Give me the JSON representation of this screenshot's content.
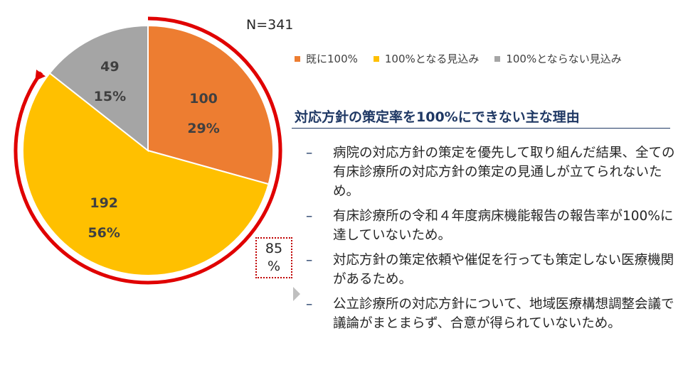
{
  "n_label": "N=341",
  "chart_data": {
    "type": "pie",
    "slices": [
      {
        "label": "既に100%",
        "count": "100",
        "percent_label": "29%",
        "value": 100,
        "color": "#ed7d31"
      },
      {
        "label": "100%となる見込み",
        "count": "192",
        "percent_label": "56%",
        "value": 192,
        "color": "#ffc000"
      },
      {
        "label": "100%とならない見込み",
        "count": "49",
        "percent_label": "15%",
        "value": 49,
        "color": "#a5a5a5"
      }
    ],
    "legend_placement": "top",
    "annotation": {
      "line1": "85",
      "line2": "%",
      "covers": [
        "既に100%",
        "100%となる見込み"
      ],
      "color": "#e00000"
    }
  },
  "legend": [
    {
      "label": "既に100%",
      "color": "#ed7d31"
    },
    {
      "label": "100%となる見込み",
      "color": "#ffc000"
    },
    {
      "label": "100%とならない見込み",
      "color": "#a5a5a5"
    }
  ],
  "reasons_title": "対応方針の策定率を100%にできない主な理由",
  "reasons": [
    {
      "dash": "–",
      "text": "病院の対応方針の策定を優先して取り組んだ結果、全ての有床診療所の対応方針の策定の見通しが立てられないため。"
    },
    {
      "dash": "–",
      "text": "有床診療所の令和４年度病床機能報告の報告率が100%に達していないため。"
    },
    {
      "dash": "–",
      "text": "対応方針の策定依頼や催促を行っても策定しない医療機関があるため。"
    },
    {
      "dash": "–",
      "text": "公立診療所の対応方針について、地域医療構想調整会議で議論がまとまらず、合意が得られていないため。"
    }
  ]
}
